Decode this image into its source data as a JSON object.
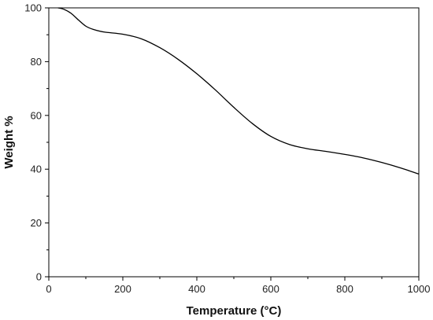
{
  "chart_data": {
    "type": "line",
    "xlabel": "Temperature (°C)",
    "ylabel": "Weight %",
    "xlim": [
      0,
      1000
    ],
    "ylim": [
      0,
      100
    ],
    "x_ticks": [
      0,
      200,
      400,
      600,
      800,
      1000
    ],
    "y_ticks": [
      0,
      20,
      40,
      60,
      80,
      100
    ],
    "grid": false,
    "series": [
      {
        "color": "#000000",
        "x": [
          25,
          40,
          60,
          80,
          100,
          120,
          150,
          200,
          250,
          300,
          350,
          400,
          450,
          500,
          550,
          600,
          650,
          700,
          750,
          800,
          850,
          900,
          950,
          1000
        ],
        "y": [
          100,
          99.5,
          98,
          95.5,
          93.2,
          92,
          91,
          90.2,
          88.5,
          85.2,
          80.8,
          75.5,
          69.5,
          63,
          57,
          52.2,
          49.2,
          47.6,
          46.6,
          45.5,
          44.2,
          42.5,
          40.5,
          38.2
        ]
      }
    ]
  }
}
